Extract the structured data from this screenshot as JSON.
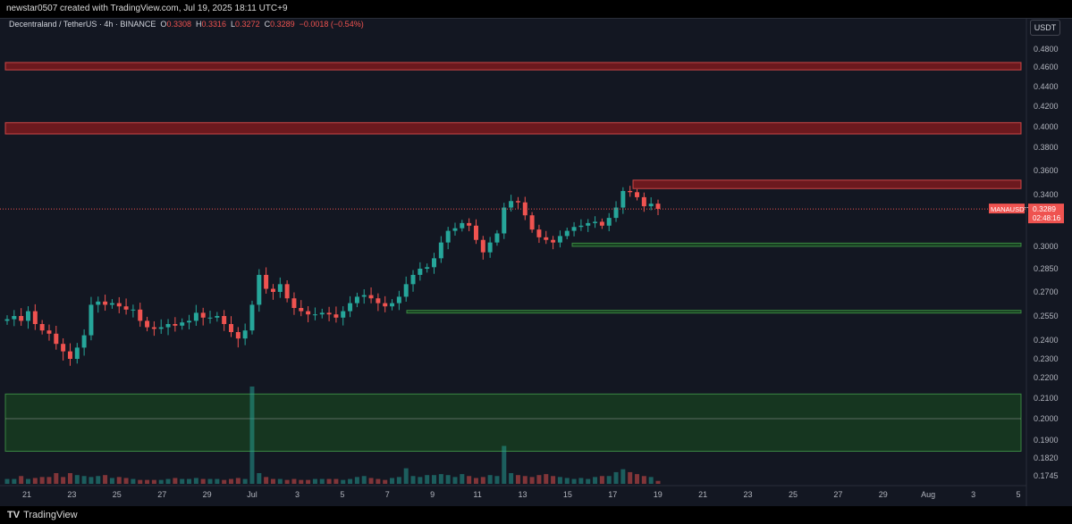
{
  "header": {
    "attribution": "newstar0507 created with TradingView.com, Jul 19, 2025 18:11 UTC+9"
  },
  "legend": {
    "symbol": "Decentraland / TetherUS · 4h · BINANCE",
    "open_label": "O",
    "open": "0.3308",
    "high_label": "H",
    "high": "0.3316",
    "low_label": "L",
    "low": "0.3272",
    "close_label": "C",
    "close": "0.3289",
    "change": "−0.0018 (−0.54%)"
  },
  "axis": {
    "currency": "USDT"
  },
  "footer": {
    "brand": "TradingView",
    "logo": "TV"
  },
  "colors": {
    "up": "#26a69a",
    "down": "#ef5350",
    "bg": "#131722",
    "resistance": "#b71c1c",
    "support": "#1b5e20"
  },
  "chart_data": {
    "type": "candlestick",
    "symbol": "MANAUSDT",
    "last_price_label": "0.3289",
    "countdown": "02:48:16",
    "y_ticks": [
      "0.4800",
      "0.4600",
      "0.4400",
      "0.4200",
      "0.4000",
      "0.3800",
      "0.3600",
      "0.3400",
      "0.3000",
      "0.2850",
      "0.2700",
      "0.2550",
      "0.2400",
      "0.2300",
      "0.2200",
      "0.2100",
      "0.2000",
      "0.1900",
      "0.1820",
      "0.1745"
    ],
    "x_ticks": [
      "21",
      "23",
      "25",
      "27",
      "29",
      "Jul",
      "3",
      "5",
      "7",
      "9",
      "11",
      "13",
      "15",
      "17",
      "19",
      "21",
      "23",
      "25",
      "27",
      "29",
      "Aug",
      "3",
      "5"
    ],
    "resistance_zones": [
      [
        0.457,
        0.465
      ],
      [
        0.393,
        0.404
      ],
      [
        0.345,
        0.352
      ]
    ],
    "support_zones": [
      [
        0.3,
        0.3025
      ],
      [
        0.257,
        0.2585
      ],
      [
        0.185,
        0.212
      ]
    ],
    "close_path": [
      0.253,
      0.255,
      0.252,
      0.258,
      0.25,
      0.246,
      0.244,
      0.238,
      0.234,
      0.23,
      0.236,
      0.243,
      0.262,
      0.264,
      0.262,
      0.263,
      0.261,
      0.259,
      0.259,
      0.252,
      0.248,
      0.247,
      0.248,
      0.25,
      0.249,
      0.251,
      0.252,
      0.257,
      0.254,
      0.254,
      0.255,
      0.25,
      0.245,
      0.241,
      0.246,
      0.262,
      0.281,
      0.272,
      0.27,
      0.275,
      0.266,
      0.26,
      0.258,
      0.256,
      0.256,
      0.257,
      0.256,
      0.254,
      0.258,
      0.263,
      0.267,
      0.268,
      0.266,
      0.263,
      0.261,
      0.263,
      0.267,
      0.275,
      0.281,
      0.285,
      0.286,
      0.292,
      0.303,
      0.312,
      0.314,
      0.318,
      0.316,
      0.305,
      0.296,
      0.303,
      0.31,
      0.33,
      0.335,
      0.334,
      0.324,
      0.313,
      0.307,
      0.305,
      0.303,
      0.308,
      0.312,
      0.315,
      0.316,
      0.318,
      0.319,
      0.316,
      0.322,
      0.33,
      0.343,
      0.342,
      0.338,
      0.331,
      0.333,
      0.329
    ],
    "volume_path": [
      0.05,
      0.05,
      0.08,
      0.05,
      0.06,
      0.07,
      0.07,
      0.11,
      0.07,
      0.11,
      0.09,
      0.08,
      0.07,
      0.08,
      0.09,
      0.06,
      0.07,
      0.06,
      0.05,
      0.04,
      0.04,
      0.04,
      0.04,
      0.05,
      0.06,
      0.05,
      0.05,
      0.06,
      0.05,
      0.05,
      0.05,
      0.04,
      0.05,
      0.06,
      0.05,
      1.0,
      0.11,
      0.07,
      0.05,
      0.05,
      0.04,
      0.05,
      0.04,
      0.04,
      0.05,
      0.05,
      0.05,
      0.05,
      0.04,
      0.05,
      0.07,
      0.08,
      0.06,
      0.05,
      0.04,
      0.06,
      0.07,
      0.16,
      0.08,
      0.07,
      0.09,
      0.09,
      0.1,
      0.09,
      0.07,
      0.1,
      0.08,
      0.06,
      0.07,
      0.09,
      0.08,
      0.39,
      0.11,
      0.09,
      0.08,
      0.07,
      0.09,
      0.1,
      0.08,
      0.07,
      0.06,
      0.05,
      0.06,
      0.05,
      0.07,
      0.08,
      0.08,
      0.12,
      0.15,
      0.12,
      0.1,
      0.08,
      0.07,
      0.03
    ]
  }
}
